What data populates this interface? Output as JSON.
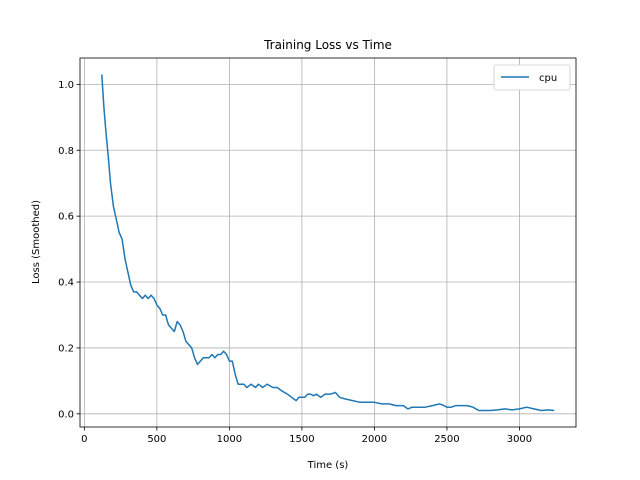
{
  "chart_data": {
    "type": "line",
    "title": "Training Loss vs Time",
    "xlabel": "Time (s)",
    "ylabel": "Loss (Smoothed)",
    "xlim": [
      -30,
      3390
    ],
    "ylim": [
      -0.04,
      1.08
    ],
    "xticks": [
      0,
      500,
      1000,
      1500,
      2000,
      2500,
      3000
    ],
    "yticks": [
      0.0,
      0.2,
      0.4,
      0.6,
      0.8,
      1.0
    ],
    "xtick_labels": [
      "0",
      "500",
      "1000",
      "1500",
      "2000",
      "2500",
      "3000"
    ],
    "ytick_labels": [
      "0.0",
      "0.2",
      "0.4",
      "0.6",
      "0.8",
      "1.0"
    ],
    "grid": true,
    "legend_position": "top-right",
    "series": [
      {
        "name": "cpu",
        "color": "#1f77b4",
        "x": [
          120,
          135,
          150,
          165,
          180,
          200,
          220,
          240,
          260,
          280,
          300,
          320,
          340,
          360,
          380,
          400,
          420,
          440,
          460,
          480,
          500,
          520,
          540,
          560,
          580,
          600,
          620,
          640,
          660,
          680,
          700,
          720,
          740,
          760,
          780,
          800,
          820,
          840,
          860,
          880,
          900,
          920,
          940,
          960,
          980,
          1000,
          1020,
          1040,
          1060,
          1080,
          1100,
          1120,
          1150,
          1180,
          1200,
          1230,
          1260,
          1300,
          1330,
          1360,
          1400,
          1430,
          1460,
          1480,
          1500,
          1520,
          1540,
          1560,
          1580,
          1600,
          1630,
          1660,
          1700,
          1730,
          1760,
          1800,
          1850,
          1900,
          1950,
          2000,
          2050,
          2100,
          2150,
          2200,
          2230,
          2260,
          2300,
          2350,
          2400,
          2450,
          2480,
          2500,
          2530,
          2560,
          2600,
          2640,
          2680,
          2720,
          2760,
          2800,
          2850,
          2900,
          2950,
          3000,
          3050,
          3100,
          3150,
          3200,
          3240
        ],
        "y": [
          1.03,
          0.93,
          0.85,
          0.78,
          0.7,
          0.63,
          0.59,
          0.55,
          0.53,
          0.47,
          0.43,
          0.39,
          0.37,
          0.37,
          0.36,
          0.35,
          0.36,
          0.35,
          0.36,
          0.35,
          0.33,
          0.32,
          0.3,
          0.3,
          0.27,
          0.26,
          0.25,
          0.28,
          0.27,
          0.25,
          0.22,
          0.21,
          0.2,
          0.17,
          0.15,
          0.16,
          0.17,
          0.17,
          0.17,
          0.18,
          0.17,
          0.18,
          0.18,
          0.19,
          0.18,
          0.16,
          0.16,
          0.12,
          0.09,
          0.09,
          0.09,
          0.08,
          0.09,
          0.08,
          0.09,
          0.08,
          0.09,
          0.08,
          0.08,
          0.07,
          0.06,
          0.05,
          0.04,
          0.05,
          0.05,
          0.05,
          0.06,
          0.06,
          0.055,
          0.06,
          0.05,
          0.06,
          0.06,
          0.065,
          0.05,
          0.045,
          0.04,
          0.035,
          0.035,
          0.035,
          0.03,
          0.03,
          0.025,
          0.025,
          0.015,
          0.02,
          0.02,
          0.02,
          0.025,
          0.03,
          0.025,
          0.02,
          0.02,
          0.025,
          0.025,
          0.025,
          0.02,
          0.01,
          0.01,
          0.01,
          0.012,
          0.015,
          0.012,
          0.015,
          0.02,
          0.015,
          0.01,
          0.012,
          0.01
        ]
      }
    ]
  }
}
